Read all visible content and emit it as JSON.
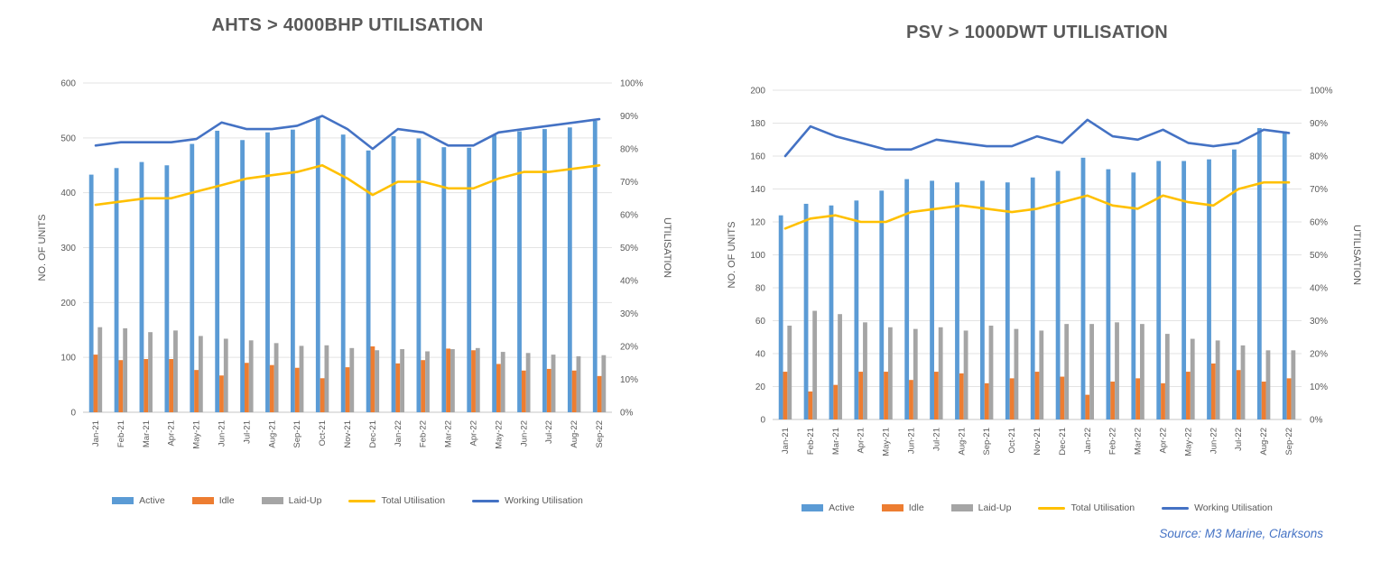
{
  "source_note": "Source: M3 Marine, Clarksons",
  "colors": {
    "active": "#5B9BD5",
    "idle": "#ED7D31",
    "laid_up": "#A5A5A5",
    "total_utilisation": "#FFC000",
    "working_utilisation": "#4472C4",
    "title_text": "#595959",
    "axis_text": "#595959",
    "gridline": "#E3E3E3",
    "axis_line": "#C6C6C6",
    "source_text": "#4472C4"
  },
  "chart_data": [
    {
      "type": "bar",
      "subtype": "combo-bar-line-dual-axis",
      "title": "AHTS > 4000BHP UTILISATION",
      "xlabel": "",
      "ylabel_left": "NO. OF UNITS",
      "ylabel_right": "UTILISATION",
      "ylim_left": [
        0,
        600
      ],
      "ytick_step_left": 100,
      "ylim_right_pct": [
        0,
        100
      ],
      "ytick_step_right_pct": 10,
      "grid": "horizontal",
      "legend_position": "bottom",
      "categories": [
        "Jan-21",
        "Feb-21",
        "Mar-21",
        "Apr-21",
        "May-21",
        "Jun-21",
        "Jul-21",
        "Aug-21",
        "Sep-21",
        "Oct-21",
        "Nov-21",
        "Dec-21",
        "Jan-22",
        "Feb-22",
        "Mar-22",
        "Apr-22",
        "May-22",
        "Jun-22",
        "Jul-22",
        "Aug-22",
        "Sep-22"
      ],
      "series": [
        {
          "name": "Active",
          "type": "bar",
          "axis": "left",
          "color": "active",
          "values": [
            433,
            445,
            456,
            450,
            489,
            513,
            496,
            510,
            515,
            538,
            506,
            477,
            503,
            499,
            483,
            482,
            505,
            512,
            516,
            519,
            531
          ]
        },
        {
          "name": "Idle",
          "type": "bar",
          "axis": "left",
          "color": "idle",
          "values": [
            105,
            95,
            97,
            97,
            77,
            67,
            90,
            86,
            81,
            62,
            82,
            120,
            89,
            95,
            116,
            113,
            88,
            76,
            79,
            76,
            66
          ]
        },
        {
          "name": "Laid-Up",
          "type": "bar",
          "axis": "left",
          "color": "laid_up",
          "values": [
            155,
            153,
            146,
            149,
            139,
            134,
            131,
            126,
            121,
            122,
            117,
            113,
            115,
            111,
            115,
            117,
            110,
            108,
            105,
            102,
            104
          ]
        },
        {
          "name": "Total Utilisation",
          "type": "line",
          "axis": "right",
          "color": "total_utilisation",
          "values_pct": [
            63,
            64,
            65,
            65,
            67,
            69,
            71,
            72,
            73,
            75,
            71,
            66,
            70,
            70,
            68,
            68,
            71,
            73,
            73,
            74,
            75
          ]
        },
        {
          "name": "Working Utilisation",
          "type": "line",
          "axis": "right",
          "color": "working_utilisation",
          "values_pct": [
            81,
            82,
            82,
            82,
            83,
            88,
            86,
            86,
            87,
            90,
            86,
            80,
            86,
            85,
            81,
            81,
            85,
            86,
            87,
            88,
            89
          ]
        }
      ]
    },
    {
      "type": "bar",
      "subtype": "combo-bar-line-dual-axis",
      "title": "PSV > 1000DWT UTILISATION",
      "xlabel": "",
      "ylabel_left": "NO. OF UNITS",
      "ylabel_right": "UTILISATION",
      "ylim_left": [
        0,
        200
      ],
      "ytick_step_left": 20,
      "ylim_right_pct": [
        0,
        100
      ],
      "ytick_step_right_pct": 10,
      "grid": "horizontal",
      "legend_position": "bottom",
      "categories": [
        "Jan-21",
        "Feb-21",
        "Mar-21",
        "Apr-21",
        "May-21",
        "Jun-21",
        "Jul-21",
        "Aug-21",
        "Sep-21",
        "Oct-21",
        "Nov-21",
        "Dec-21",
        "Jan-22",
        "Feb-22",
        "Mar-22",
        "Apr-22",
        "May-22",
        "Jun-22",
        "Jul-22",
        "Aug-22",
        "Sep-22"
      ],
      "series": [
        {
          "name": "Active",
          "type": "bar",
          "axis": "left",
          "color": "active",
          "values": [
            124,
            131,
            130,
            133,
            139,
            146,
            145,
            144,
            145,
            144,
            147,
            151,
            159,
            152,
            150,
            157,
            157,
            158,
            164,
            177,
            175
          ]
        },
        {
          "name": "Idle",
          "type": "bar",
          "axis": "left",
          "color": "idle",
          "values": [
            29,
            17,
            21,
            29,
            29,
            24,
            29,
            28,
            22,
            25,
            29,
            26,
            15,
            23,
            25,
            22,
            29,
            34,
            30,
            23,
            25
          ]
        },
        {
          "name": "Laid-Up",
          "type": "bar",
          "axis": "left",
          "color": "laid_up",
          "values": [
            57,
            66,
            64,
            59,
            56,
            55,
            56,
            54,
            57,
            55,
            54,
            58,
            58,
            59,
            58,
            52,
            49,
            48,
            45,
            42,
            42
          ]
        },
        {
          "name": "Total Utilisation",
          "type": "line",
          "axis": "right",
          "color": "total_utilisation",
          "values_pct": [
            58,
            61,
            62,
            60,
            60,
            63,
            64,
            65,
            64,
            63,
            64,
            66,
            68,
            65,
            64,
            68,
            66,
            65,
            70,
            72,
            72
          ]
        },
        {
          "name": "Working Utilisation",
          "type": "line",
          "axis": "right",
          "color": "working_utilisation",
          "values_pct": [
            80,
            89,
            86,
            84,
            82,
            82,
            85,
            84,
            83,
            83,
            86,
            84,
            91,
            86,
            85,
            88,
            84,
            83,
            84,
            88,
            87
          ]
        }
      ]
    }
  ]
}
